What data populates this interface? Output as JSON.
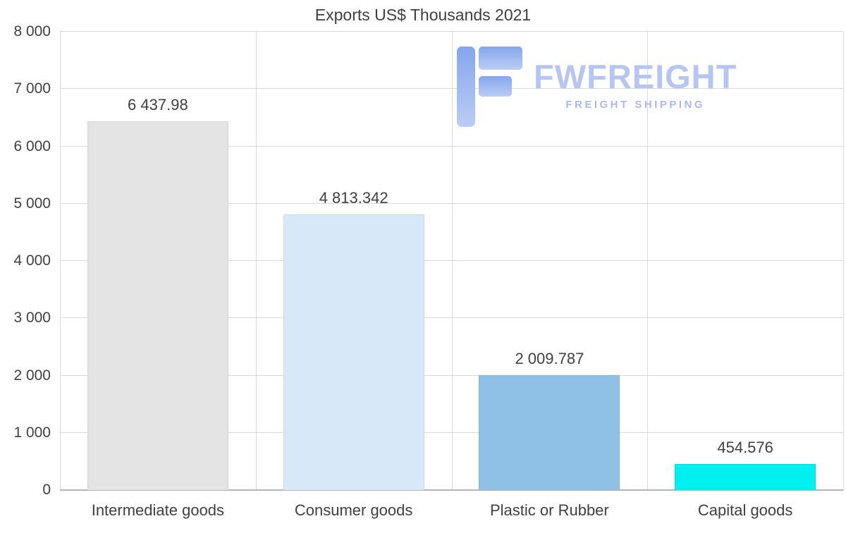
{
  "chart_data": {
    "type": "bar",
    "title": "Exports US$ Thousands 2021",
    "categories": [
      "Intermediate goods",
      "Consumer goods",
      "Plastic or Rubber",
      "Capital goods"
    ],
    "values": [
      6437.98,
      4813.342,
      2009.787,
      454.576
    ],
    "value_labels": [
      "6 437.98",
      "4 813.342",
      "2 009.787",
      "454.576"
    ],
    "bar_colors": [
      "#e4e4e4",
      "#d7e8f8",
      "#8fc1e6",
      "#00f0f0"
    ],
    "xlabel": "",
    "ylabel": "",
    "ylim": [
      0,
      8000
    ],
    "ytick_step": 1000,
    "ytick_labels": [
      "0",
      "1 000",
      "2 000",
      "3 000",
      "4 000",
      "5 000",
      "6 000",
      "7 000",
      "8 000"
    ],
    "grid": true,
    "legend": false
  },
  "logo": {
    "wordmark": "FWFREIGHT",
    "tagline": "FREIGHT SHIPPING",
    "accent_color": "#b7c5f3"
  }
}
